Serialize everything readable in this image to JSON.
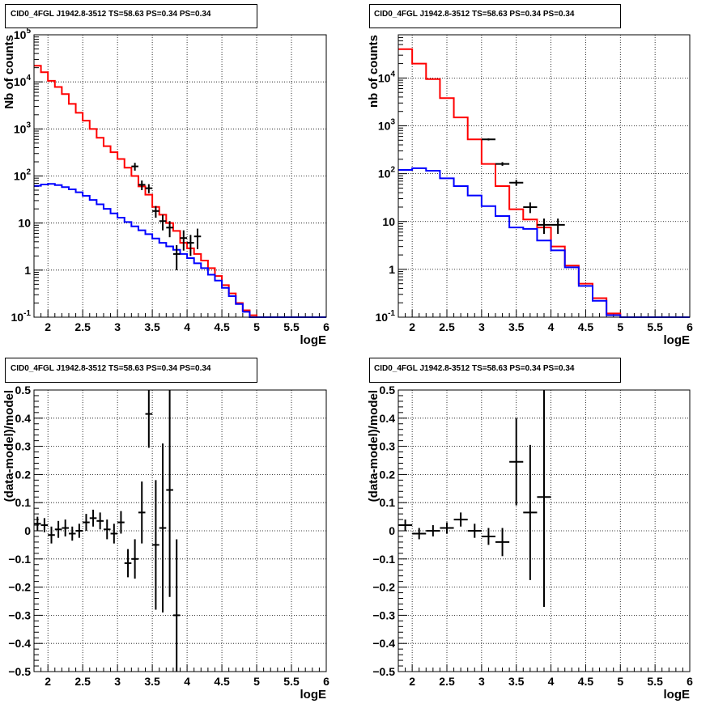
{
  "chart_data": [
    {
      "type": "line",
      "title": "CID0_4FGL J1942.8-3512 TS=58.63 PS=0.34 PS=0.34",
      "xlabel": "logE",
      "ylabel": "Nb of counts",
      "log_y": true,
      "xlim": [
        1.8,
        6.0
      ],
      "ylim": [
        0.1,
        100000
      ],
      "grid": true,
      "x_ticks": [
        2,
        2.5,
        3,
        3.5,
        4,
        4.5,
        5,
        5.5,
        6
      ],
      "x_tick_labels": [
        "2",
        "2.5",
        "3",
        "3.5",
        "4",
        "4.5",
        "5",
        "5.5",
        "6"
      ],
      "y_ticks": [
        0.1,
        1,
        10,
        100,
        1000,
        10000,
        100000
      ],
      "y_tick_labels": [
        "10^-1",
        "1",
        "10",
        "10^2",
        "10^3",
        "10^4",
        "10^5"
      ],
      "bin_edges": [
        1.8,
        1.9,
        2.0,
        2.1,
        2.2,
        2.3,
        2.4,
        2.5,
        2.6,
        2.7,
        2.8,
        2.9,
        3.0,
        3.1,
        3.2,
        3.3,
        3.4,
        3.5,
        3.6,
        3.7,
        3.8,
        3.9,
        4.0,
        4.1,
        4.2,
        4.3,
        4.4,
        4.5,
        4.6,
        4.7,
        4.8,
        4.9,
        5.0,
        5.1,
        5.2,
        5.3,
        5.4,
        5.5,
        5.6,
        5.7,
        5.8,
        5.9,
        6.0
      ],
      "series": [
        {
          "color": "#ff0000",
          "style": "hist",
          "values": [
            22000,
            16000,
            10500,
            7800,
            5500,
            3400,
            2200,
            1500,
            1000,
            650,
            430,
            320,
            230,
            150,
            100,
            60,
            40,
            22,
            15,
            10,
            6.8,
            3.8,
            2.9,
            2.2,
            1.6,
            1.1,
            0.75,
            0.48,
            0.32,
            0.2,
            0.14,
            0.11,
            0.1,
            0.1,
            0.1,
            0.1,
            0.1,
            0.1,
            0.1,
            0.1,
            0.1,
            0.1
          ]
        },
        {
          "color": "#0000ff",
          "style": "hist",
          "values": [
            62,
            66,
            68,
            64,
            58,
            52,
            45,
            38,
            31,
            25,
            20,
            16,
            13,
            10.5,
            8.5,
            7,
            5.8,
            4.7,
            3.8,
            3.2,
            2.7,
            2.2,
            1.8,
            1.4,
            1.1,
            0.8,
            0.6,
            0.42,
            0.28,
            0.19,
            0.13,
            0.1,
            0.1,
            0.1,
            0.1,
            0.1,
            0.1,
            0.1,
            0.1,
            0.1,
            0.1,
            0.1
          ]
        },
        {
          "color": "#000000",
          "style": "points",
          "x": [
            3.25,
            3.35,
            3.45,
            3.55,
            3.65,
            3.75,
            3.85,
            3.95,
            4.05,
            4.15
          ],
          "y": [
            160,
            65,
            55,
            18,
            11,
            8,
            2.2,
            4.8,
            3.8,
            5.2
          ],
          "err": [
            30,
            15,
            12,
            5,
            4,
            3,
            1.2,
            2.2,
            1.8,
            2.4
          ],
          "xerr": 0.05
        }
      ]
    },
    {
      "type": "line",
      "title": "CID0_4FGL J1942.8-3512 TS=58.63 PS=0.34 PS=0.34",
      "xlabel": "logE",
      "ylabel": "nb of counts",
      "log_y": true,
      "xlim": [
        1.8,
        6.0
      ],
      "ylim": [
        0.1,
        80000
      ],
      "grid": true,
      "x_ticks": [
        2,
        2.5,
        3,
        3.5,
        4,
        4.5,
        5,
        5.5,
        6
      ],
      "x_tick_labels": [
        "2",
        "2.5",
        "3",
        "3.5",
        "4",
        "4.5",
        "5",
        "5.5",
        "6"
      ],
      "y_ticks": [
        0.1,
        1,
        10,
        100,
        1000,
        10000
      ],
      "y_tick_labels": [
        "10^-1",
        "1",
        "10",
        "10^2",
        "10^3",
        "10^4"
      ],
      "bin_edges": [
        1.8,
        2.0,
        2.2,
        2.4,
        2.6,
        2.8,
        3.0,
        3.2,
        3.4,
        3.6,
        3.8,
        4.0,
        4.2,
        4.4,
        4.6,
        4.8,
        5.0,
        5.2,
        5.4,
        5.6,
        5.8,
        6.0
      ],
      "series": [
        {
          "color": "#ff0000",
          "style": "hist",
          "values": [
            40000,
            20000,
            9500,
            3800,
            1500,
            520,
            160,
            55,
            18,
            11,
            7.5,
            3.0,
            1.2,
            0.5,
            0.25,
            0.12,
            0.1,
            0.1,
            0.1,
            0.1,
            0.1
          ]
        },
        {
          "color": "#0000ff",
          "style": "hist",
          "values": [
            120,
            130,
            115,
            80,
            55,
            35,
            21,
            13,
            7.5,
            7.0,
            4.0,
            2.5,
            1.1,
            0.45,
            0.22,
            0.11,
            0.1,
            0.1,
            0.1,
            0.1,
            0.1
          ]
        },
        {
          "color": "#000000",
          "style": "points",
          "x": [
            3.1,
            3.3,
            3.5,
            3.7,
            3.9,
            4.1
          ],
          "y": [
            520,
            160,
            65,
            20,
            8.5,
            8.5
          ],
          "err": [
            25,
            14,
            9,
            5,
            3,
            3
          ],
          "xerr": 0.1
        }
      ]
    },
    {
      "type": "scatter",
      "title": "CID0_4FGL J1942.8-3512 TS=58.63 PS=0.34 PS=0.34",
      "xlabel": "logE",
      "ylabel": "(data-model)/model",
      "xlim": [
        1.8,
        6.0
      ],
      "ylim": [
        -0.5,
        0.5
      ],
      "grid": true,
      "x_ticks": [
        2,
        2.5,
        3,
        3.5,
        4,
        4.5,
        5,
        5.5,
        6
      ],
      "x_tick_labels": [
        "2",
        "2.5",
        "3",
        "3.5",
        "4",
        "4.5",
        "5",
        "5.5",
        "6"
      ],
      "y_ticks": [
        -0.5,
        -0.4,
        -0.3,
        -0.2,
        -0.1,
        0,
        0.1,
        0.2,
        0.3,
        0.4,
        0.5
      ],
      "y_tick_labels": [
        "−0.5",
        "−0.4",
        "−0.3",
        "−0.2",
        "−0.1",
        "0",
        "0.1",
        "0.2",
        "0.3",
        "0.4",
        "0.5"
      ],
      "series": [
        {
          "color": "#000000",
          "style": "points",
          "xerr": 0.05,
          "x": [
            1.85,
            1.95,
            2.05,
            2.15,
            2.25,
            2.35,
            2.45,
            2.55,
            2.65,
            2.75,
            2.85,
            2.95,
            3.05,
            3.15,
            3.25,
            3.35,
            3.45,
            3.55,
            3.65,
            3.75,
            3.85
          ],
          "y": [
            0.025,
            0.02,
            -0.015,
            0.005,
            0.01,
            -0.01,
            0.0,
            0.03,
            0.045,
            0.035,
            0.005,
            -0.01,
            0.03,
            -0.115,
            -0.1,
            0.065,
            0.415,
            -0.05,
            0.01,
            0.145,
            -0.3
          ],
          "err": [
            0.025,
            0.025,
            0.03,
            0.03,
            0.03,
            0.025,
            0.025,
            0.03,
            0.03,
            0.03,
            0.035,
            0.035,
            0.04,
            0.05,
            0.07,
            0.11,
            0.12,
            0.23,
            0.3,
            0.38,
            0.27
          ]
        }
      ]
    },
    {
      "type": "scatter",
      "title": "CID0_4FGL J1942.8-3512 TS=58.63 PS=0.34 PS=0.34",
      "xlabel": "logE",
      "ylabel": "(data-model)/model",
      "xlim": [
        1.8,
        6.0
      ],
      "ylim": [
        -0.5,
        0.5
      ],
      "grid": true,
      "x_ticks": [
        2,
        2.5,
        3,
        3.5,
        4,
        4.5,
        5,
        5.5,
        6
      ],
      "x_tick_labels": [
        "2",
        "2.5",
        "3",
        "3.5",
        "4",
        "4.5",
        "5",
        "5.5",
        "6"
      ],
      "y_ticks": [
        -0.5,
        -0.4,
        -0.3,
        -0.2,
        -0.1,
        0,
        0.1,
        0.2,
        0.3,
        0.4,
        0.5
      ],
      "y_tick_labels": [
        "−0.5",
        "−0.4",
        "−0.3",
        "−0.2",
        "−0.1",
        "0",
        "0.1",
        "0.2",
        "0.3",
        "0.4",
        "0.5"
      ],
      "series": [
        {
          "color": "#000000",
          "style": "points",
          "xerr": 0.1,
          "x": [
            1.9,
            2.1,
            2.3,
            2.5,
            2.7,
            2.9,
            3.1,
            3.3,
            3.5,
            3.7,
            3.9
          ],
          "y": [
            0.02,
            -0.01,
            0.0,
            0.01,
            0.04,
            0.0,
            -0.02,
            -0.04,
            0.245,
            0.065,
            0.12
          ],
          "err": [
            0.02,
            0.02,
            0.02,
            0.02,
            0.025,
            0.025,
            0.03,
            0.05,
            0.155,
            0.24,
            0.39
          ]
        }
      ]
    }
  ]
}
